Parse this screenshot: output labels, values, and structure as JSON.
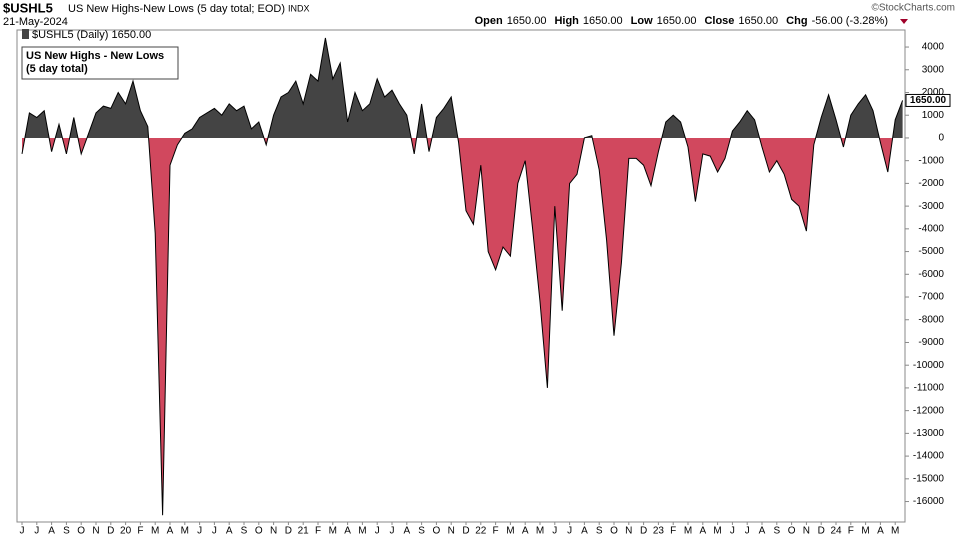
{
  "chart_data": {
    "type": "area",
    "symbol": "$USHL5",
    "title": "US New Highs-New Lows (5 day total; EOD)",
    "exchange": "INDX",
    "date": "21-May-2024",
    "quote": [
      {
        "label": "Open",
        "value": "1650.00"
      },
      {
        "label": "High",
        "value": "1650.00"
      },
      {
        "label": "Low",
        "value": "1650.00"
      },
      {
        "label": "Close",
        "value": "1650.00"
      },
      {
        "label": "Chg",
        "value": "-56.00 (-3.28%)"
      }
    ],
    "watermark": "©StockCharts.com",
    "annotation": [
      "US New Highs - New Lows",
      "(5 day total)"
    ],
    "last_label": "1650.00",
    "categories": [
      "J",
      null,
      "J",
      null,
      "A",
      null,
      "S",
      null,
      "O",
      null,
      "N",
      null,
      "D",
      null,
      "20",
      null,
      "F",
      null,
      "M",
      null,
      "A",
      null,
      "M",
      null,
      "J",
      null,
      "J",
      null,
      "A",
      null,
      "S",
      null,
      "O",
      null,
      "N",
      null,
      "D",
      null,
      "21",
      null,
      "F",
      null,
      "M",
      null,
      "A",
      null,
      "M",
      null,
      "J",
      null,
      "J",
      null,
      "A",
      null,
      "S",
      null,
      "O",
      null,
      "N",
      null,
      "D",
      null,
      "22",
      null,
      "F",
      null,
      "M",
      null,
      "A",
      null,
      "M",
      null,
      "J",
      null,
      "J",
      null,
      "A",
      null,
      "S",
      null,
      "O",
      null,
      "N",
      null,
      "D",
      null,
      "23",
      null,
      "F",
      null,
      "M",
      null,
      "A",
      null,
      "M",
      null,
      "J",
      null,
      "J",
      null,
      "A",
      null,
      "S",
      null,
      "O",
      null,
      "N",
      null,
      "D",
      null,
      "24",
      null,
      "F",
      null,
      "M",
      null,
      "A",
      null,
      "M",
      null
    ],
    "series": [
      {
        "name": "$USHL5 (Daily) 1650.00",
        "positive_color": "#444444",
        "negative_color": "#d1485e",
        "values": [
          -700,
          1100,
          900,
          1200,
          -600,
          600,
          -700,
          900,
          -700,
          200,
          1100,
          1400,
          1300,
          2000,
          1500,
          2500,
          1200,
          500,
          -4200,
          -16600,
          -1200,
          -300,
          200,
          400,
          900,
          1100,
          1300,
          1000,
          1500,
          1200,
          1400,
          400,
          700,
          -300,
          1000,
          1800,
          2000,
          2500,
          1500,
          2800,
          2500,
          4400,
          2600,
          3300,
          700,
          2000,
          1200,
          1500,
          2600,
          1800,
          2100,
          1500,
          1000,
          -700,
          1500,
          -600,
          900,
          1300,
          1800,
          -200,
          -3200,
          -3800,
          -1200,
          -5000,
          -5800,
          -4800,
          -5200,
          -2000,
          -1000,
          -4000,
          -7200,
          -11000,
          -3000,
          -7600,
          -2000,
          -1600,
          0,
          100,
          -1400,
          -4500,
          -8700,
          -5500,
          -900,
          -900,
          -1200,
          -2100,
          -600,
          700,
          1000,
          700,
          -400,
          -2800,
          -700,
          -800,
          -1500,
          -900,
          300,
          700,
          1200,
          800,
          -400,
          -1500,
          -1000,
          -1600,
          -2700,
          -3000,
          -4100,
          -300,
          900,
          1900,
          800,
          -400,
          1000,
          1500,
          1900,
          1200,
          -200,
          -1500,
          800,
          1650
        ]
      }
    ],
    "ylim": [
      -16900,
      4750
    ],
    "yticks": [
      4000,
      3000,
      2000,
      1000,
      0,
      -1000,
      -2000,
      -3000,
      -4000,
      -5000,
      -6000,
      -7000,
      -8000,
      -9000,
      -10000,
      -11000,
      -12000,
      -13000,
      -14000,
      -15000,
      -16000
    ]
  }
}
